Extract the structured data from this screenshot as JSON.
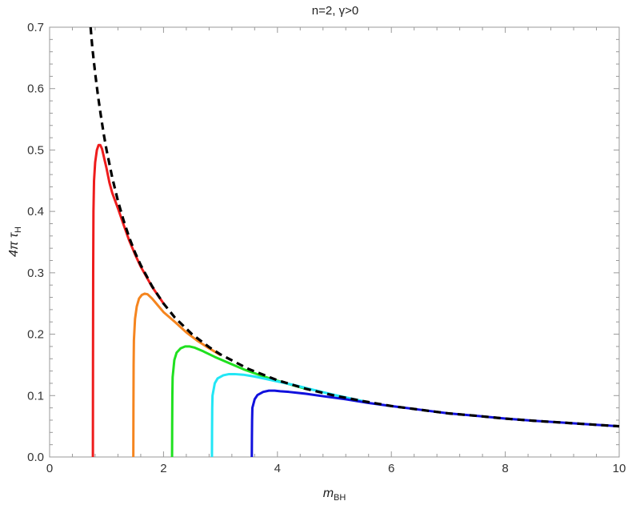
{
  "chart_data": {
    "type": "line",
    "title": "n=2, γ>0",
    "xlabel": {
      "main": "m",
      "sub": "BH"
    },
    "ylabel": {
      "main": "4π τ",
      "sub": "H"
    },
    "xlim": [
      0,
      10
    ],
    "ylim": [
      0,
      0.7
    ],
    "x_ticks": [
      0,
      2,
      4,
      6,
      8,
      10
    ],
    "y_ticks": [
      0.0,
      0.1,
      0.2,
      0.3,
      0.4,
      0.5,
      0.6,
      0.7
    ],
    "x_tick_labels": [
      "0",
      "2",
      "4",
      "6",
      "8",
      "10"
    ],
    "y_tick_labels": [
      "0.0",
      "0.1",
      "0.2",
      "0.3",
      "0.4",
      "0.5",
      "0.6",
      "0.7"
    ],
    "grid": false,
    "envelope": {
      "style": "dashed",
      "color": "#000000",
      "x": [
        0.72,
        0.75,
        0.8,
        0.85,
        0.9,
        0.95,
        1.0,
        1.1,
        1.2,
        1.3,
        1.4,
        1.5,
        1.6,
        1.8,
        2.0,
        2.2,
        2.5,
        2.8,
        3.0,
        3.5,
        4.0,
        4.5,
        5.0,
        5.5,
        6.0,
        6.5,
        7.0,
        7.5,
        8.0,
        8.5,
        9.0,
        9.5,
        10.0
      ],
      "y": [
        0.7,
        0.667,
        0.625,
        0.588,
        0.556,
        0.526,
        0.5,
        0.455,
        0.417,
        0.385,
        0.357,
        0.333,
        0.3125,
        0.278,
        0.25,
        0.227,
        0.2,
        0.179,
        0.167,
        0.143,
        0.125,
        0.111,
        0.1,
        0.091,
        0.083,
        0.077,
        0.071,
        0.067,
        0.0625,
        0.059,
        0.056,
        0.053,
        0.05
      ]
    },
    "series": [
      {
        "color": "#ee1c1c",
        "x": [
          0.76,
          0.762,
          0.765,
          0.77,
          0.78,
          0.8,
          0.83,
          0.86,
          0.89,
          0.92,
          0.95,
          1.0,
          1.05,
          1.1,
          1.2,
          1.3,
          1.4,
          1.5,
          1.6,
          1.8,
          2.0
        ],
        "y": [
          0.0,
          0.15,
          0.3,
          0.4,
          0.45,
          0.48,
          0.5,
          0.508,
          0.508,
          0.502,
          0.49,
          0.47,
          0.447,
          0.43,
          0.405,
          0.378,
          0.352,
          0.33,
          0.31,
          0.277,
          0.25
        ]
      },
      {
        "color": "#f5851f",
        "x": [
          1.47,
          1.472,
          1.475,
          1.48,
          1.5,
          1.53,
          1.57,
          1.62,
          1.67,
          1.72,
          1.8,
          1.9,
          2.0,
          2.2,
          2.4,
          2.6,
          2.8,
          3.0
        ],
        "y": [
          0.0,
          0.08,
          0.15,
          0.19,
          0.225,
          0.245,
          0.258,
          0.264,
          0.266,
          0.265,
          0.258,
          0.247,
          0.236,
          0.22,
          0.203,
          0.189,
          0.177,
          0.166
        ]
      },
      {
        "color": "#1fe01f",
        "x": [
          2.15,
          2.152,
          2.155,
          2.16,
          2.19,
          2.23,
          2.3,
          2.38,
          2.46,
          2.55,
          2.7,
          2.9,
          3.1,
          3.4,
          3.7,
          4.0,
          4.5
        ],
        "y": [
          0.0,
          0.05,
          0.1,
          0.13,
          0.158,
          0.17,
          0.177,
          0.18,
          0.18,
          0.178,
          0.172,
          0.163,
          0.155,
          0.143,
          0.133,
          0.124,
          0.111
        ]
      },
      {
        "color": "#22e6f5",
        "x": [
          2.85,
          2.852,
          2.855,
          2.86,
          2.9,
          2.95,
          3.05,
          3.15,
          3.25,
          3.4,
          3.6,
          3.8,
          4.0,
          4.3,
          4.6,
          5.0,
          5.5
        ],
        "y": [
          0.0,
          0.04,
          0.08,
          0.1,
          0.12,
          0.128,
          0.133,
          0.135,
          0.135,
          0.134,
          0.131,
          0.127,
          0.123,
          0.117,
          0.11,
          0.101,
          0.091
        ]
      },
      {
        "color": "#1111dd",
        "x": [
          3.55,
          3.552,
          3.555,
          3.56,
          3.6,
          3.65,
          3.75,
          3.85,
          3.95,
          4.05,
          4.2,
          4.5,
          4.8,
          5.2,
          5.6,
          6.0,
          6.5,
          7.0,
          7.5,
          8.0,
          8.5,
          9.0,
          9.5,
          10.0
        ],
        "y": [
          0.0,
          0.03,
          0.06,
          0.08,
          0.094,
          0.101,
          0.106,
          0.108,
          0.108,
          0.107,
          0.106,
          0.103,
          0.099,
          0.094,
          0.088,
          0.083,
          0.077,
          0.071,
          0.067,
          0.0625,
          0.059,
          0.056,
          0.053,
          0.05
        ]
      }
    ]
  }
}
